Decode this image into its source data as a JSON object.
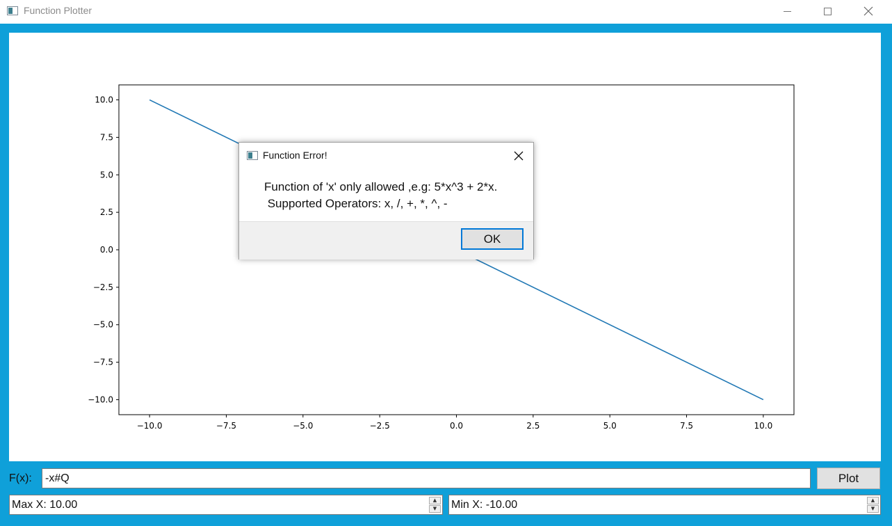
{
  "window": {
    "title": "Function Plotter",
    "accent_color": "#0fa0d9"
  },
  "controls": {
    "fx_label": "F(x):",
    "fx_value": "-x#Q",
    "plot_label": "Plot",
    "max_x_value": "Max X: 10.00",
    "min_x_value": "Min X: -10.00"
  },
  "dialog": {
    "title": "Function Error!",
    "message_line1": "Function of 'x' only allowed ,e.g: 5*x^3 + 2*x.",
    "message_line2": " Supported Operators: x, /, +, *, ^, -",
    "ok_label": "OK"
  },
  "chart_data": {
    "type": "line",
    "title": "",
    "xlabel": "",
    "ylabel": "",
    "xlim": [
      -11.0,
      11.0
    ],
    "ylim": [
      -11.0,
      11.0
    ],
    "xticks": [
      -10.0,
      -7.5,
      -5.0,
      -2.5,
      0.0,
      2.5,
      5.0,
      7.5,
      10.0
    ],
    "yticks": [
      10.0,
      7.5,
      5.0,
      2.5,
      0.0,
      -2.5,
      -5.0,
      -7.5,
      -10.0
    ],
    "xtick_labels": [
      "−10.0",
      "−7.5",
      "−5.0",
      "−2.5",
      "0.0",
      "2.5",
      "5.0",
      "7.5",
      "10.0"
    ],
    "ytick_labels": [
      "10.0",
      "7.5",
      "5.0",
      "2.5",
      "0.0",
      "−2.5",
      "−5.0",
      "−7.5",
      "−10.0"
    ],
    "grid": false,
    "series": [
      {
        "color": "#1f77b4",
        "x": [
          -10.0,
          10.0
        ],
        "y": [
          10.0,
          -10.0
        ]
      }
    ]
  }
}
